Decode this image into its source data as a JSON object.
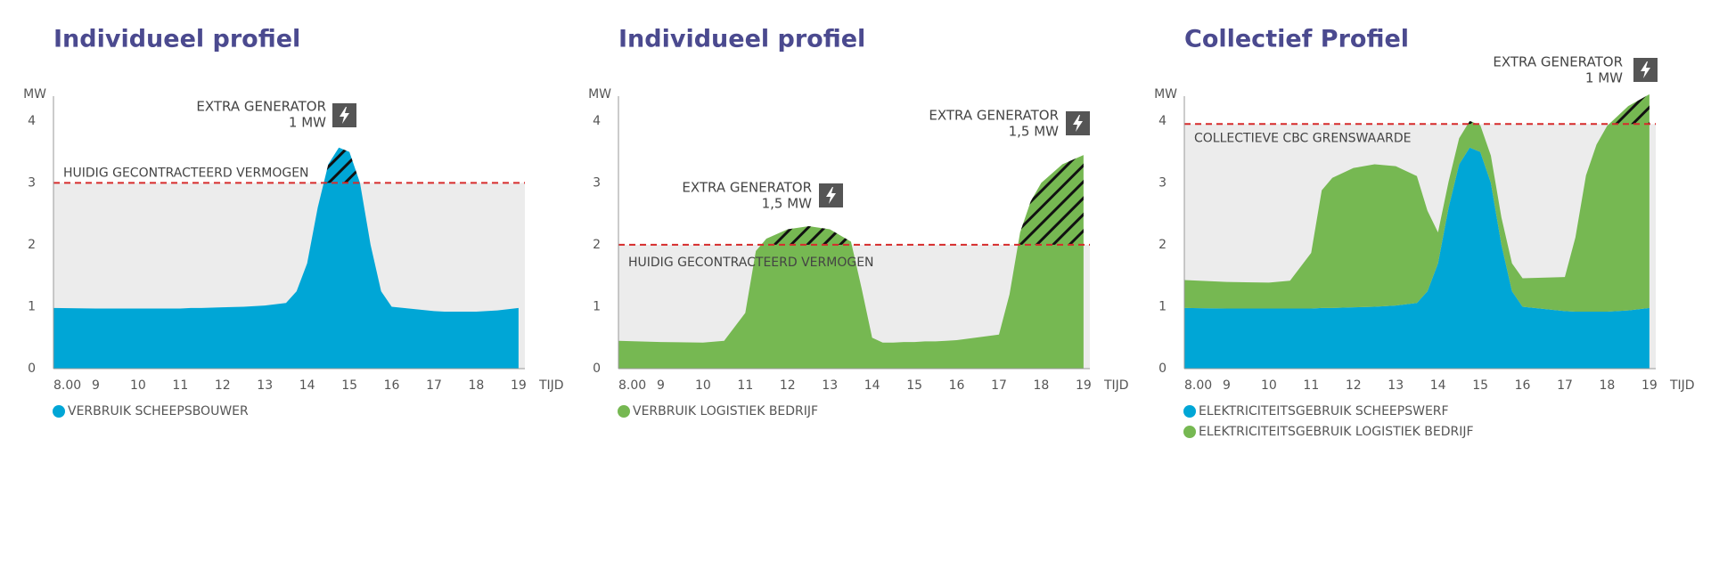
{
  "chart_data": [
    {
      "type": "area",
      "title": "Individueel profiel",
      "ylabel": "MW",
      "xlabel": "TIJD",
      "xlim": [
        8,
        19.15
      ],
      "ylim": [
        0,
        4.4
      ],
      "yticks": [
        0,
        1,
        2,
        3,
        4
      ],
      "xticks": [
        {
          "value": 8,
          "label": "8.00"
        },
        9,
        10,
        11,
        12,
        13,
        14,
        15,
        16,
        17,
        18,
        19
      ],
      "x": [
        8,
        9,
        10,
        10.5,
        11,
        11.25,
        11.5,
        12,
        12.5,
        13,
        13.5,
        13.75,
        14,
        14.25,
        14.5,
        14.75,
        15,
        15.25,
        15.5,
        15.75,
        16,
        17,
        17.25,
        17.5,
        17.75,
        18,
        18.5,
        19
      ],
      "series": [
        {
          "name": "VERBRUIK SCHEEPSBOUWER",
          "color": "#00a6d6",
          "values": [
            0.98,
            0.97,
            0.97,
            0.97,
            0.97,
            0.98,
            0.98,
            0.99,
            1.0,
            1.02,
            1.06,
            1.25,
            1.7,
            2.6,
            3.3,
            3.57,
            3.5,
            3.0,
            2.0,
            1.25,
            1.0,
            0.93,
            0.92,
            0.92,
            0.92,
            0.92,
            0.94,
            0.98
          ]
        }
      ],
      "threshold": {
        "value": 3,
        "label": "HUIDIG GECONTRACTEERD VERMOGEN"
      },
      "annotations": [
        {
          "lines": [
            "EXTRA GENERATOR",
            "1 MW"
          ]
        }
      ]
    },
    {
      "type": "area",
      "title": "Individueel profiel",
      "ylabel": "MW",
      "xlabel": "TIJD",
      "xlim": [
        8,
        19.15
      ],
      "ylim": [
        0,
        4.4
      ],
      "yticks": [
        0,
        1,
        2,
        3,
        4
      ],
      "xticks": [
        {
          "value": 8,
          "label": "8.00"
        },
        9,
        10,
        11,
        12,
        13,
        14,
        15,
        16,
        17,
        18,
        19
      ],
      "x": [
        8,
        9,
        10,
        10.5,
        11,
        11.25,
        11.5,
        12,
        12.5,
        13,
        13.5,
        13.75,
        14,
        14.25,
        14.5,
        14.75,
        15,
        15.25,
        15.5,
        15.75,
        16,
        17,
        17.25,
        17.5,
        17.75,
        18,
        18.5,
        19
      ],
      "series": [
        {
          "name": "VERBRUIK LOGISTIEK BEDRIJF",
          "color": "#76b852",
          "values": [
            0.45,
            0.43,
            0.42,
            0.45,
            0.9,
            1.9,
            2.1,
            2.25,
            2.3,
            2.25,
            2.05,
            1.3,
            0.5,
            0.42,
            0.42,
            0.43,
            0.43,
            0.44,
            0.44,
            0.45,
            0.46,
            0.55,
            1.2,
            2.2,
            2.7,
            3.0,
            3.3,
            3.45
          ]
        }
      ],
      "threshold": {
        "value": 2,
        "label": "HUIDIG GECONTRACTEERD VERMOGEN"
      },
      "annotations": [
        {
          "lines": [
            "EXTRA GENERATOR",
            "1,5 MW"
          ]
        },
        {
          "lines": [
            "EXTRA GENERATOR",
            "1,5 MW"
          ]
        }
      ]
    },
    {
      "type": "area",
      "stacked": true,
      "title": "Collectief Profiel",
      "ylabel": "MW",
      "xlabel": "TIJD",
      "xlim": [
        8,
        19.15
      ],
      "ylim": [
        0,
        4.4
      ],
      "yticks": [
        0,
        1,
        2,
        3,
        4
      ],
      "xticks": [
        {
          "value": 8,
          "label": "8.00"
        },
        9,
        10,
        11,
        12,
        13,
        14,
        15,
        16,
        17,
        18,
        19
      ],
      "x": [
        8,
        9,
        10,
        10.5,
        11,
        11.25,
        11.5,
        12,
        12.5,
        13,
        13.5,
        13.75,
        14,
        14.25,
        14.5,
        14.75,
        15,
        15.25,
        15.5,
        15.75,
        16,
        17,
        17.25,
        17.5,
        17.75,
        18,
        18.5,
        19
      ],
      "series": [
        {
          "name": "ELEKTRICITEITSGEBRUIK SCHEEPSWERF",
          "color": "#00a6d6",
          "values": [
            0.98,
            0.97,
            0.97,
            0.97,
            0.97,
            0.98,
            0.98,
            0.99,
            1.0,
            1.02,
            1.06,
            1.25,
            1.7,
            2.6,
            3.3,
            3.57,
            3.5,
            3.0,
            2.0,
            1.25,
            1.0,
            0.93,
            0.92,
            0.92,
            0.92,
            0.92,
            0.94,
            0.98
          ]
        },
        {
          "name": "ELEKTRICITEITSGEBRUIK LOGISTIEK BEDRIJF",
          "color": "#76b852",
          "values": [
            0.45,
            0.43,
            0.42,
            0.45,
            0.9,
            1.9,
            2.1,
            2.25,
            2.3,
            2.25,
            2.05,
            1.3,
            0.5,
            0.42,
            0.42,
            0.43,
            0.43,
            0.44,
            0.44,
            0.45,
            0.46,
            0.55,
            1.2,
            2.2,
            2.7,
            3.0,
            3.3,
            3.45
          ]
        }
      ],
      "threshold": {
        "value": 3.95,
        "label": "COLLECTIEVE CBC GRENSWAARDE"
      },
      "annotations": [
        {
          "lines": [
            "EXTRA GENERATOR",
            "1 MW"
          ]
        }
      ]
    }
  ]
}
